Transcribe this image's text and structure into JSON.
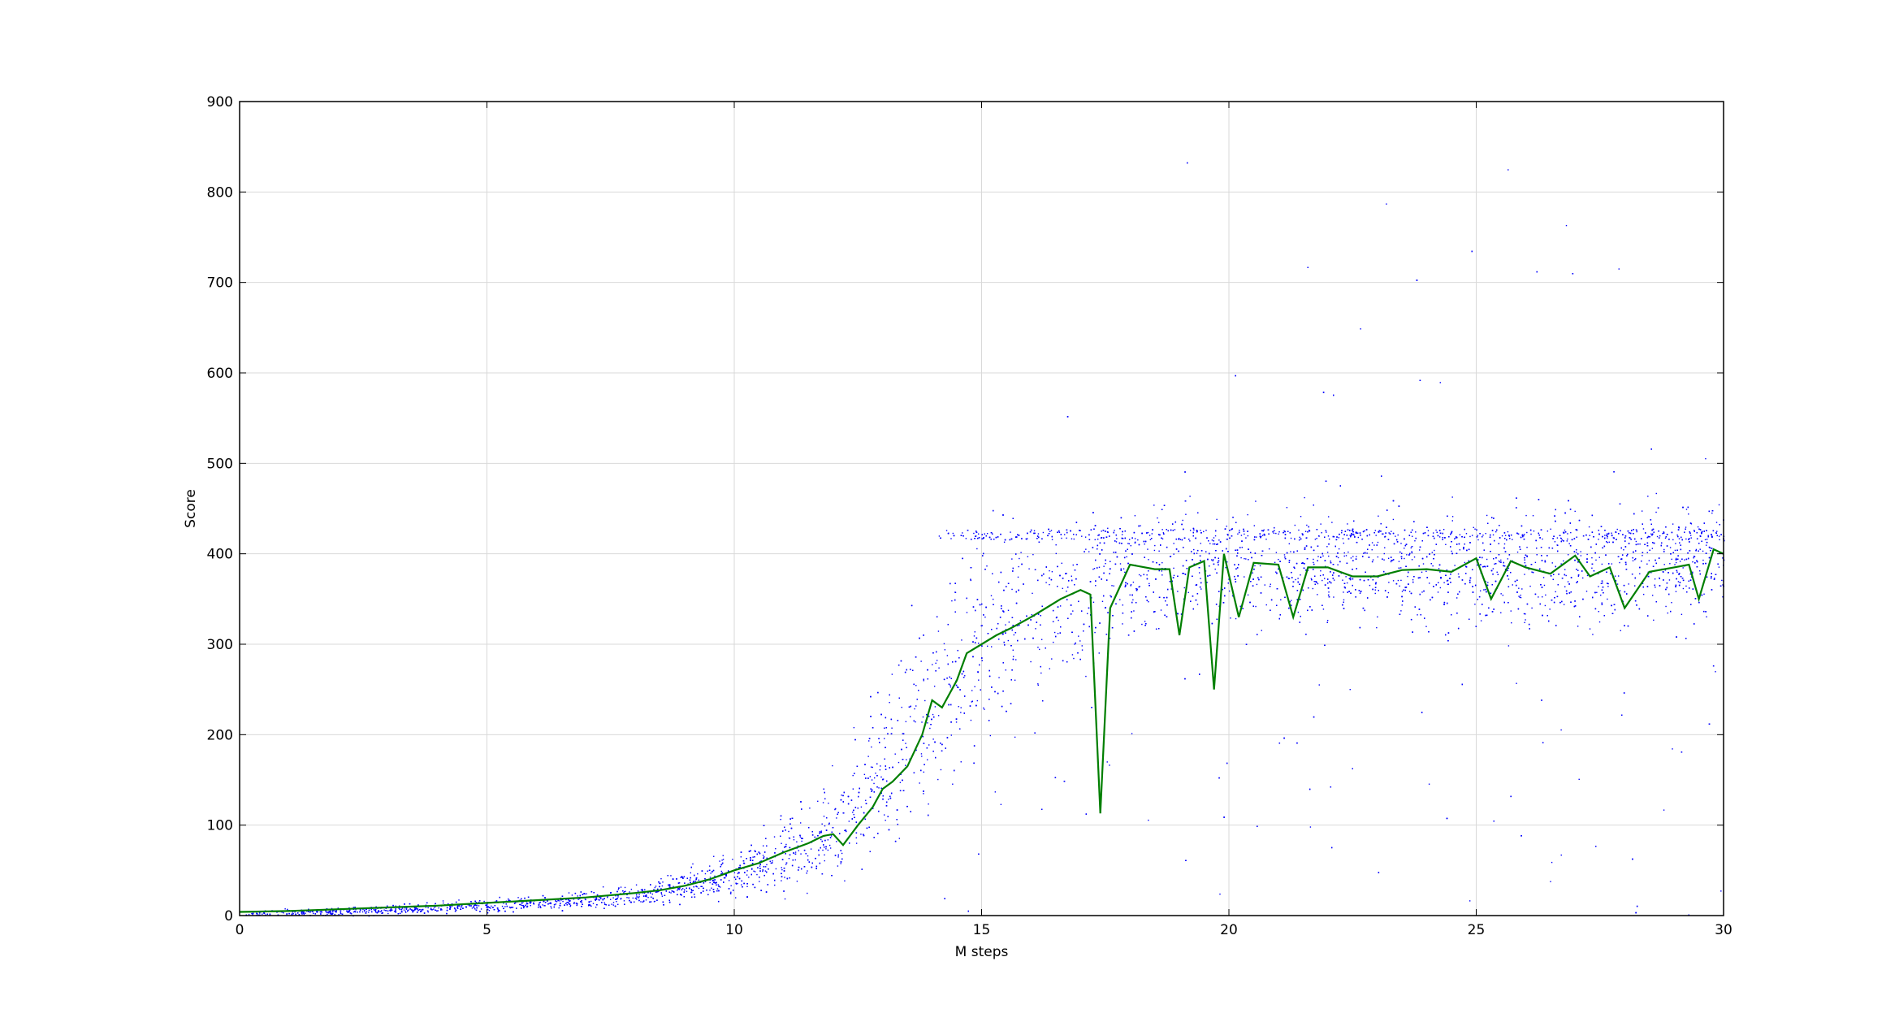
{
  "chart_data": {
    "type": "scatter",
    "title": "",
    "xlabel": "M steps",
    "ylabel": "Score",
    "xlim": [
      0,
      30
    ],
    "ylim": [
      0,
      900
    ],
    "xticks": [
      0,
      5,
      10,
      15,
      20,
      25,
      30
    ],
    "yticks": [
      0,
      100,
      200,
      300,
      400,
      500,
      600,
      700,
      800,
      900
    ],
    "grid": true,
    "legend": "none",
    "series": [
      {
        "kind": "scatter",
        "color": "#0000ff",
        "description_of_distribution": [
          {
            "x": 0,
            "center": 3,
            "spread": 3
          },
          {
            "x": 2,
            "center": 5,
            "spread": 4
          },
          {
            "x": 4,
            "center": 9,
            "spread": 6
          },
          {
            "x": 6,
            "center": 14,
            "spread": 8
          },
          {
            "x": 8,
            "center": 22,
            "spread": 12
          },
          {
            "x": 9,
            "center": 33,
            "spread": 16
          },
          {
            "x": 10,
            "center": 48,
            "spread": 25
          },
          {
            "x": 11,
            "center": 68,
            "spread": 40
          },
          {
            "x": 12,
            "center": 95,
            "spread": 60
          },
          {
            "x": 13,
            "center": 160,
            "spread": 90
          },
          {
            "x": 14,
            "center": 235,
            "spread": 110
          },
          {
            "x": 15,
            "center": 300,
            "spread": 110
          },
          {
            "x": 16,
            "center": 335,
            "spread": 95
          },
          {
            "x": 17,
            "center": 360,
            "spread": 80
          },
          {
            "x": 18,
            "center": 385,
            "spread": 60
          },
          {
            "x": 20,
            "center": 385,
            "spread": 60
          },
          {
            "x": 25,
            "center": 385,
            "spread": 60
          },
          {
            "x": 30,
            "center": 390,
            "spread": 60
          }
        ],
        "plateau_cap": 428,
        "outlier_max": 855
      },
      {
        "kind": "line",
        "color": "#007f00",
        "x": [
          0,
          1,
          2,
          3,
          4,
          5,
          6,
          7,
          8,
          8.5,
          9,
          9.5,
          10,
          10.5,
          11,
          11.5,
          11.8,
          12.0,
          12.2,
          12.5,
          12.8,
          13.0,
          13.2,
          13.5,
          13.8,
          14.0,
          14.2,
          14.5,
          14.7,
          15.0,
          15.3,
          15.6,
          16.0,
          16.3,
          16.6,
          17.0,
          17.2,
          17.4,
          17.6,
          18.0,
          18.5,
          18.8,
          19.0,
          19.2,
          19.5,
          19.7,
          19.9,
          20.2,
          20.5,
          21.0,
          21.3,
          21.6,
          22.0,
          22.5,
          23.0,
          23.5,
          24.0,
          24.5,
          25.0,
          25.3,
          25.7,
          26.0,
          26.5,
          27.0,
          27.3,
          27.7,
          28.0,
          28.5,
          29.0,
          29.3,
          29.5,
          29.8,
          30.0
        ],
        "y": [
          4,
          5,
          7,
          9,
          11,
          14,
          17,
          20,
          25,
          28,
          33,
          40,
          50,
          58,
          70,
          80,
          88,
          90,
          78,
          100,
          120,
          140,
          148,
          165,
          200,
          238,
          230,
          260,
          290,
          300,
          310,
          318,
          330,
          340,
          350,
          360,
          355,
          113,
          340,
          388,
          383,
          383,
          310,
          385,
          392,
          250,
          400,
          330,
          390,
          388,
          330,
          385,
          385,
          375,
          375,
          382,
          383,
          380,
          395,
          350,
          392,
          385,
          378,
          398,
          375,
          385,
          340,
          380,
          385,
          388,
          350,
          405,
          400
        ]
      }
    ]
  }
}
